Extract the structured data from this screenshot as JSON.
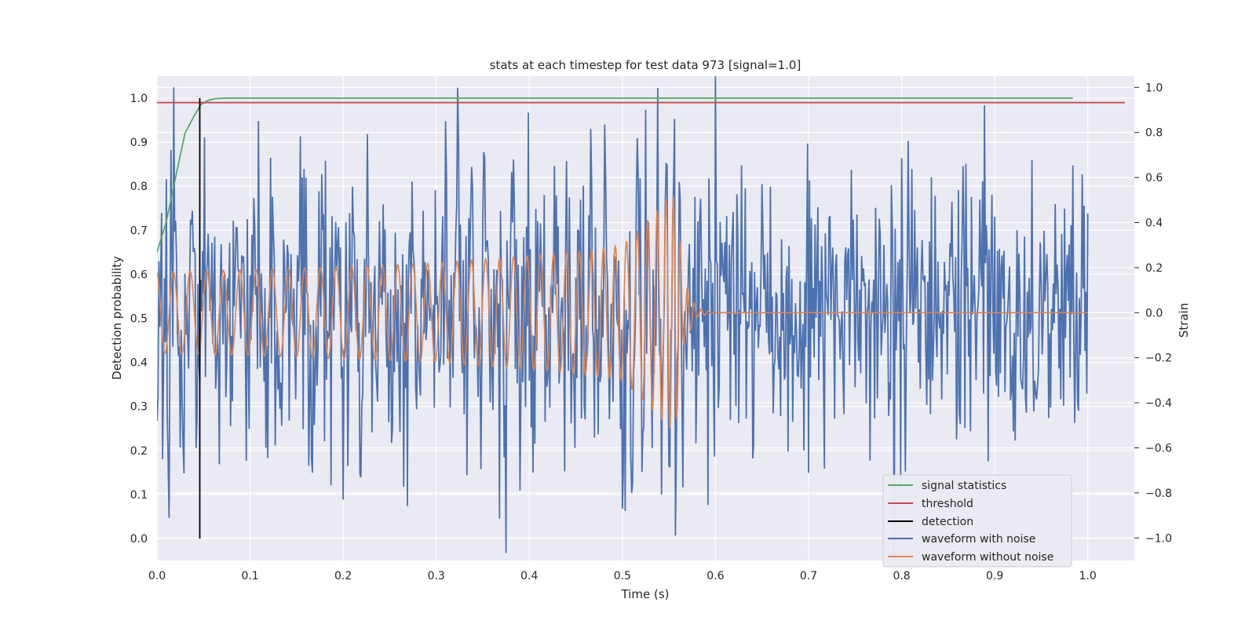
{
  "chart_data": {
    "type": "line",
    "title": "stats at each timestep for test data 973 [signal=1.0]",
    "xlabel": "Time (s)",
    "ylabel_left": "Detection probability",
    "ylabel_right": "Strain",
    "xlim": [
      0.0,
      1.05
    ],
    "ylim_left": [
      -0.05,
      1.05
    ],
    "ylim_right": [
      -1.1,
      1.05
    ],
    "xticks": [
      "0.0",
      "0.1",
      "0.2",
      "0.3",
      "0.4",
      "0.5",
      "0.6",
      "0.7",
      "0.8",
      "0.9",
      "1.0"
    ],
    "yticks_left": [
      "0.0",
      "0.1",
      "0.2",
      "0.3",
      "0.4",
      "0.5",
      "0.6",
      "0.7",
      "0.8",
      "0.9",
      "1.0"
    ],
    "yticks_right": [
      "−1.0",
      "−0.8",
      "−0.6",
      "−0.4",
      "−0.2",
      "0.0",
      "0.2",
      "0.4",
      "0.6",
      "0.8",
      "1.0"
    ],
    "grid": true,
    "legend_position": "lower-right",
    "colors": {
      "signal": "#55a868",
      "threshold": "#c44e52",
      "detection": "#000000",
      "noisy": "#4c72b0",
      "clean": "#dd8452",
      "plot_bg": "#eaeaf2",
      "grid": "#ffffff"
    },
    "series": [
      {
        "name": "signal statistics",
        "axis": "left",
        "x": [
          0.0,
          0.01,
          0.02,
          0.03,
          0.04,
          0.047,
          0.055,
          0.063,
          0.075,
          0.1,
          0.2,
          0.5,
          0.984
        ],
        "y": [
          0.65,
          0.72,
          0.82,
          0.92,
          0.96,
          0.985,
          0.995,
          0.999,
          1.0,
          1.0,
          1.0,
          1.0,
          1.0
        ]
      },
      {
        "name": "threshold",
        "axis": "left",
        "x": [
          0.0,
          1.04
        ],
        "y": [
          0.99,
          0.99
        ]
      },
      {
        "name": "detection",
        "axis": "left",
        "x": [
          0.046,
          0.046
        ],
        "y": [
          0.0,
          1.0
        ]
      },
      {
        "name": "waveform with noise",
        "axis": "right",
        "x": [
          0.0,
          0.018,
          0.046,
          0.127,
          0.163,
          0.2,
          0.31,
          0.39,
          0.5,
          0.503,
          0.51,
          0.556,
          0.557,
          0.889,
          0.893,
          1.0
        ],
        "y": [
          -0.48,
          1.0,
          -0.3,
          -0.59,
          -0.68,
          -0.83,
          0.85,
          -0.79,
          -0.87,
          -0.88,
          -0.8,
          0.86,
          -0.99,
          0.92,
          -0.66,
          0.44
        ]
      },
      {
        "name": "waveform without noise",
        "axis": "right",
        "x": [
          0.0,
          0.1,
          0.3,
          0.45,
          0.5,
          0.52,
          0.54,
          0.55,
          0.555,
          0.56,
          0.565,
          0.58,
          0.6,
          1.0
        ],
        "y_envelope": [
          0.18,
          0.19,
          0.22,
          0.27,
          0.3,
          0.38,
          0.47,
          0.52,
          0.52,
          0.45,
          0.15,
          0.02,
          0.0,
          0.0
        ]
      }
    ]
  }
}
